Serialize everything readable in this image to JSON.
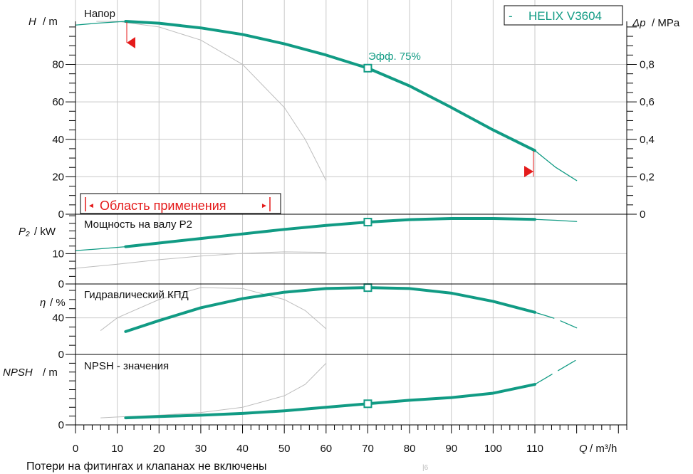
{
  "colors": {
    "curve": "#119b84",
    "grey": "#bdbdbd",
    "grid": "#c8c8c8",
    "axis": "#000000",
    "range": "#e41b1b"
  },
  "labels": {
    "legend": "HELIX V3604",
    "legend_dash": "-",
    "eff_label": "Эфф.  75%",
    "range_label": "Область применения",
    "range_left_marker": "◄",
    "range_right_marker": "►",
    "footnote": "Потери на фитингах и клапанах не включены",
    "stray_mark": "|6",
    "x_axis_label": "Q",
    "x_axis_unit": "/ m³/h"
  },
  "chart_data": [
    {
      "type": "line",
      "panel": "head",
      "title": "Напор",
      "ylabel": "H",
      "ylabel_unit": "/ m",
      "y2label": "Δp",
      "y2label_unit": "/ MPa",
      "ylim": [
        0,
        103
      ],
      "yticks": [
        "0",
        "20",
        "40",
        "60",
        "80"
      ],
      "y2ticks": [
        "0",
        "0,2",
        "0,4",
        "0,6",
        "0,8"
      ],
      "xlim": [
        0,
        132
      ],
      "grid": true,
      "series": [
        {
          "role": "main",
          "x": [
            12,
            20,
            30,
            40,
            50,
            60,
            70,
            80,
            90,
            100,
            110
          ],
          "y": [
            103,
            102,
            99.5,
            96,
            91,
            85,
            78,
            68.5,
            57,
            45,
            34
          ]
        },
        {
          "role": "extension",
          "x": [
            0,
            5,
            12
          ],
          "y": [
            101,
            102,
            103
          ]
        },
        {
          "role": "extension",
          "x": [
            110,
            115,
            120
          ],
          "y": [
            34,
            25,
            18
          ]
        },
        {
          "role": "reference",
          "x": [
            5,
            10,
            20,
            30,
            40,
            50,
            55,
            60
          ],
          "y": [
            103,
            103,
            100,
            93,
            80,
            57,
            40,
            18
          ]
        }
      ],
      "markers": [
        {
          "x": 70,
          "y": 78
        }
      ],
      "range_min": 12,
      "range_max": 110
    },
    {
      "type": "line",
      "panel": "power",
      "title": "Мощность на валу P2",
      "ylabel": "P₂",
      "ylabel_unit": "/ kW",
      "ylim": [
        0,
        23
      ],
      "yticks": [
        "0",
        "10"
      ],
      "xlim": [
        0,
        132
      ],
      "grid": true,
      "series": [
        {
          "role": "main",
          "x": [
            12,
            20,
            30,
            40,
            50,
            60,
            70,
            80,
            90,
            100,
            110
          ],
          "y": [
            12.3,
            13.5,
            15,
            16.5,
            18,
            19.3,
            20.4,
            21.2,
            21.6,
            21.6,
            21.3
          ]
        },
        {
          "role": "extension",
          "x": [
            0,
            5,
            12
          ],
          "y": [
            11,
            11.5,
            12.3
          ]
        },
        {
          "role": "extension",
          "x": [
            110,
            115,
            120
          ],
          "y": [
            21.3,
            21,
            20.6
          ]
        },
        {
          "role": "reference",
          "x": [
            0,
            10,
            20,
            30,
            40,
            50,
            60
          ],
          "y": [
            5.2,
            6.5,
            8,
            9.2,
            10.1,
            10.6,
            10.4
          ]
        }
      ],
      "markers": [
        {
          "x": 70,
          "y": 20.4
        }
      ]
    },
    {
      "type": "line",
      "panel": "efficiency",
      "title": "Гидравлический КПД",
      "ylabel": "η",
      "ylabel_unit": "/ %",
      "ylim": [
        0,
        77
      ],
      "yticks": [
        "0",
        "40"
      ],
      "xlim": [
        0,
        132
      ],
      "grid": true,
      "series": [
        {
          "role": "main",
          "x": [
            12,
            20,
            30,
            40,
            50,
            60,
            70,
            80,
            90,
            100,
            110
          ],
          "y": [
            25,
            37,
            51,
            61,
            68,
            72,
            73,
            72,
            67,
            58,
            46
          ]
        },
        {
          "role": "extension",
          "x": [
            110,
            115,
            120
          ],
          "y": [
            46,
            39,
            29
          ],
          "dashed": true
        },
        {
          "role": "reference",
          "x": [
            6,
            10,
            20,
            30,
            40,
            50,
            55,
            60
          ],
          "y": [
            26,
            40,
            60,
            73,
            72,
            60,
            48,
            28
          ]
        }
      ],
      "markers": [
        {
          "x": 70,
          "y": 73
        }
      ]
    },
    {
      "type": "line",
      "panel": "npsh",
      "title": "NPSH - значения",
      "ylabel": "NPSH",
      "ylabel_unit": "/ m",
      "ylim": [
        0,
        8
      ],
      "yticks": [
        "0"
      ],
      "xlim": [
        0,
        132
      ],
      "grid": true,
      "series": [
        {
          "role": "main",
          "x": [
            12,
            20,
            30,
            40,
            50,
            60,
            70,
            80,
            90,
            100,
            110
          ],
          "y": [
            0.8,
            0.95,
            1.1,
            1.3,
            1.6,
            2,
            2.4,
            2.8,
            3.1,
            3.6,
            4.6
          ]
        },
        {
          "role": "extension",
          "x": [
            110,
            115,
            120
          ],
          "y": [
            4.6,
            6,
            7.4
          ],
          "dashed": true
        },
        {
          "role": "reference",
          "x": [
            6,
            10,
            20,
            30,
            40,
            50,
            55,
            60
          ],
          "y": [
            0.8,
            0.9,
            1.1,
            1.4,
            2,
            3.3,
            4.6,
            7
          ]
        }
      ],
      "markers": [
        {
          "x": 70,
          "y": 2.4
        }
      ]
    }
  ],
  "x_axis": {
    "ticks": [
      0,
      10,
      20,
      30,
      40,
      50,
      60,
      70,
      80,
      90,
      100,
      110
    ],
    "tick_labels": [
      "0",
      "10",
      "20",
      "30",
      "40",
      "50",
      "60",
      "70",
      "80",
      "90",
      "100",
      "110"
    ]
  }
}
